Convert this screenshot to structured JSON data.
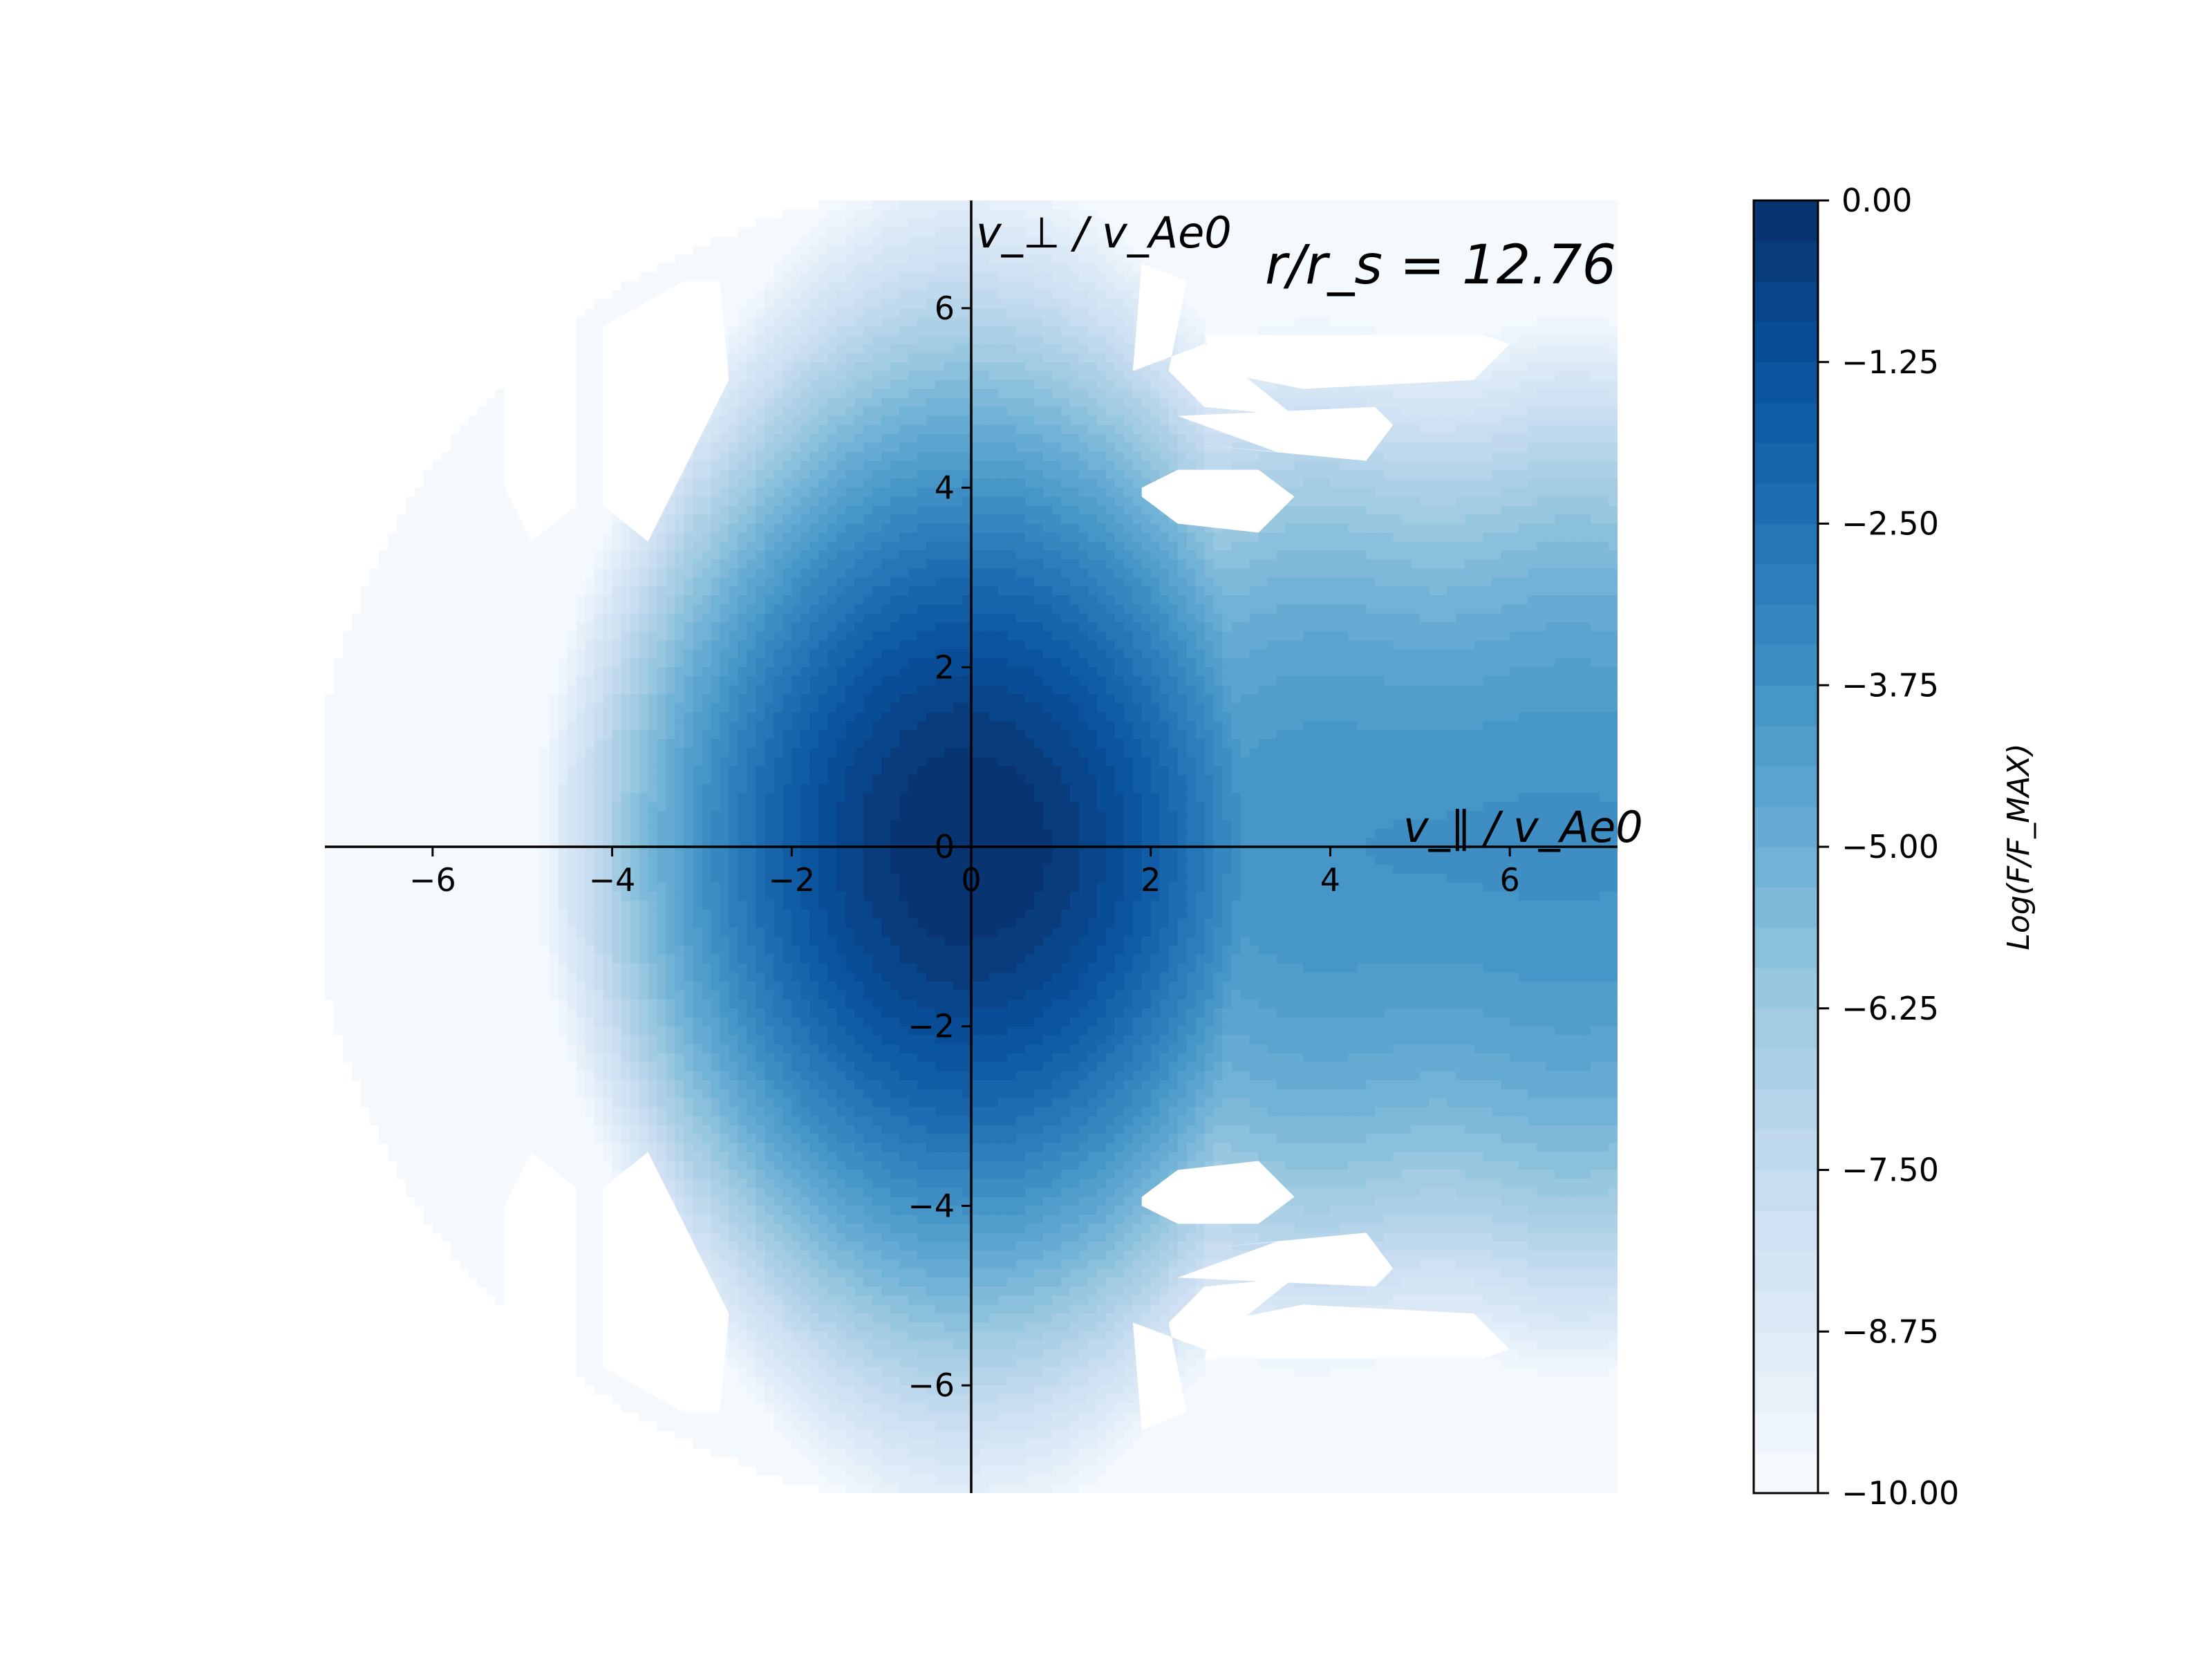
{
  "chart_data": {
    "type": "heatmap",
    "plot_kind": "filled-contour",
    "annotation": "r/r_s = 12.76",
    "xlabel": "v_∥ / v_Ae0",
    "ylabel": "v_⊥ / v_Ae0",
    "x_ticks": [
      -6,
      -4,
      -2,
      0,
      2,
      4,
      6
    ],
    "y_ticks": [
      -6,
      -4,
      -2,
      0,
      2,
      4,
      6
    ],
    "xlim": [
      -7.2,
      7.2
    ],
    "ylim": [
      -7.2,
      7.2
    ],
    "colorbar": {
      "label": "Log(F/F_MAX)",
      "range": [
        -10.0,
        0.0
      ],
      "ticks": [
        "0.00",
        "−1.25",
        "−2.50",
        "−3.75",
        "−5.00",
        "−6.25",
        "−7.50",
        "−8.75",
        "−10.00"
      ],
      "levels": 32,
      "colormap": "Blues"
    },
    "distribution_peak": {
      "x": 0.0,
      "y": 0.0,
      "value": 0.0
    },
    "features": [
      {
        "description": "core",
        "x": 0.0,
        "y": 0.0,
        "value": -0.5
      },
      {
        "description": "beam toward +v_parallel",
        "x": 6.0,
        "y": 0.0,
        "value": -3.7
      },
      {
        "description": "empty patch",
        "x": -4.3,
        "y": 4.8
      },
      {
        "description": "empty patch",
        "x": -3.0,
        "y": 4.8
      },
      {
        "description": "empty patch",
        "x": 2.8,
        "y": 3.7
      },
      {
        "description": "empty patch",
        "x": 3.5,
        "y": 4.9
      },
      {
        "description": "empty patch",
        "x": 2.6,
        "y": 5.8
      }
    ]
  },
  "colors": {
    "colormap_stops": [
      "#f7fbff",
      "#deebf7",
      "#c6dbef",
      "#9ecae1",
      "#6baed6",
      "#4292c6",
      "#2171b5",
      "#08519c",
      "#08306b"
    ],
    "axes": "#000000",
    "background": "#ffffff"
  }
}
